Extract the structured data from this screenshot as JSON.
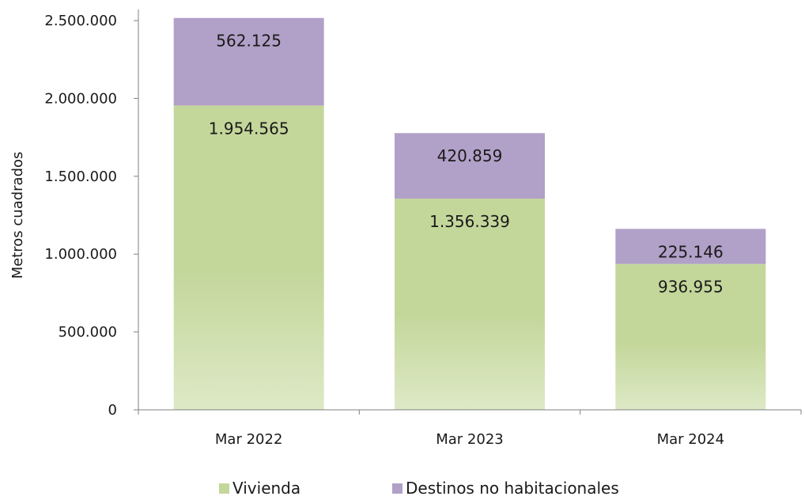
{
  "chart_data": {
    "type": "bar",
    "stacked": true,
    "categories": [
      "Mar 2022",
      "Mar 2023",
      "Mar 2024"
    ],
    "series": [
      {
        "name": "Vivienda",
        "values": [
          1954565,
          1356339,
          936955
        ],
        "labels": [
          "1.954.565",
          "1.356.339",
          "936.955"
        ]
      },
      {
        "name": "Destinos no habitacionales",
        "values": [
          562125,
          420859,
          225146
        ],
        "labels": [
          "562.125",
          "420.859",
          "225.146"
        ]
      }
    ],
    "title": "",
    "xlabel": "",
    "ylabel": "Metros cuadrados",
    "ylim": [
      0,
      2500000
    ],
    "yticks": [
      0,
      500000,
      1000000,
      1500000,
      2000000,
      2500000
    ],
    "ytick_labels": [
      "0",
      "500.000",
      "1.000.000",
      "1.500.000",
      "2.000.000",
      "2.500.000"
    ],
    "grid": false,
    "legend_position": "bottom",
    "colors": {
      "Vivienda": "#c4d79b",
      "Vivienda_light": "#dce7c3",
      "Destinos no habitacionales": "#b1a0c7"
    }
  }
}
